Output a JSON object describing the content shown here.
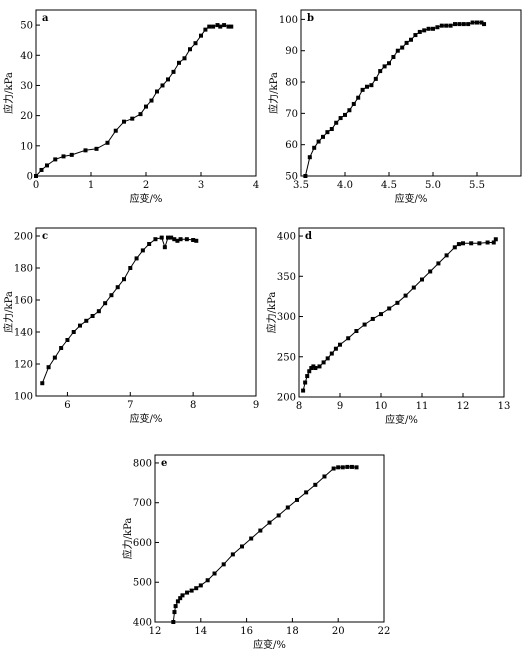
{
  "chart_data": [
    {
      "type": "scatter",
      "panel_label": "a",
      "xlabel": "应变/%",
      "ylabel": "应力/kPa",
      "xlim": [
        0,
        4
      ],
      "ylim": [
        0,
        55
      ],
      "xticks": [
        "0",
        "1",
        "2",
        "3",
        "4"
      ],
      "yticks": [
        "0",
        "10",
        "20",
        "30",
        "40",
        "50"
      ],
      "x": [
        0,
        0.1,
        0.2,
        0.35,
        0.5,
        0.65,
        0.9,
        1.1,
        1.3,
        1.45,
        1.6,
        1.75,
        1.9,
        2.0,
        2.1,
        2.2,
        2.3,
        2.4,
        2.5,
        2.6,
        2.7,
        2.8,
        2.9,
        3.0,
        3.08,
        3.15,
        3.22,
        3.3,
        3.35,
        3.42,
        3.5,
        3.55
      ],
      "y": [
        0,
        2,
        3.5,
        5.5,
        6.5,
        7,
        8.5,
        9,
        11,
        15,
        18,
        19,
        20.5,
        23,
        25,
        28,
        30,
        32,
        34.5,
        37.5,
        39,
        42,
        44,
        46.5,
        48.5,
        49.5,
        49.5,
        50,
        49.5,
        50,
        49.5,
        49.5
      ]
    },
    {
      "type": "scatter",
      "panel_label": "b",
      "xlabel": "应变/%",
      "ylabel": "应力/kPa",
      "xlim": [
        3.5,
        6.0
      ],
      "ylim": [
        50,
        103
      ],
      "xticks": [
        "3.5",
        "4.0",
        "4.5",
        "5.0",
        "5.5"
      ],
      "yticks": [
        "50",
        "60",
        "70",
        "80",
        "90",
        "100"
      ],
      "x": [
        3.55,
        3.6,
        3.65,
        3.7,
        3.75,
        3.8,
        3.85,
        3.9,
        3.95,
        4.0,
        4.05,
        4.1,
        4.15,
        4.2,
        4.25,
        4.3,
        4.35,
        4.4,
        4.45,
        4.5,
        4.55,
        4.6,
        4.65,
        4.7,
        4.75,
        4.8,
        4.85,
        4.9,
        4.95,
        5.0,
        5.05,
        5.1,
        5.15,
        5.2,
        5.25,
        5.3,
        5.35,
        5.4,
        5.45,
        5.5,
        5.55,
        5.58
      ],
      "y": [
        50,
        56,
        59,
        61,
        62.5,
        64,
        65,
        67,
        68.5,
        69.5,
        71,
        73,
        75,
        77.5,
        78.5,
        79,
        81,
        83.5,
        85,
        86,
        88,
        90,
        91,
        92.5,
        93.5,
        95,
        96,
        96.5,
        97,
        97,
        97.5,
        98,
        98,
        98,
        98.5,
        98.5,
        98.5,
        98.5,
        99,
        99,
        99,
        98.5
      ]
    },
    {
      "type": "scatter",
      "panel_label": "c",
      "xlabel": "应变/%",
      "ylabel": "应力/kPa",
      "xlim": [
        5.5,
        9
      ],
      "ylim": [
        100,
        205
      ],
      "xticks": [
        "6",
        "7",
        "8",
        "9"
      ],
      "yticks": [
        "100",
        "120",
        "140",
        "160",
        "180",
        "200"
      ],
      "x": [
        5.6,
        5.7,
        5.8,
        5.9,
        6.0,
        6.1,
        6.2,
        6.3,
        6.4,
        6.5,
        6.6,
        6.7,
        6.8,
        6.9,
        7.0,
        7.1,
        7.2,
        7.3,
        7.4,
        7.5,
        7.55,
        7.6,
        7.65,
        7.7,
        7.75,
        7.8,
        7.9,
        8.0,
        8.05
      ],
      "y": [
        108,
        118,
        124,
        130,
        135,
        140,
        144,
        147,
        150,
        153,
        158,
        163,
        168,
        173,
        180,
        186,
        191,
        195,
        198,
        199,
        193,
        199,
        199,
        198,
        197,
        198,
        198,
        197.5,
        197
      ]
    },
    {
      "type": "scatter",
      "panel_label": "d",
      "xlabel": "应变/%",
      "ylabel": "应力/kPa",
      "xlim": [
        8,
        13
      ],
      "ylim": [
        200,
        410
      ],
      "xticks": [
        "8",
        "9",
        "10",
        "11",
        "12",
        "13"
      ],
      "yticks": [
        "200",
        "250",
        "300",
        "350",
        "400"
      ],
      "x": [
        8.1,
        8.15,
        8.2,
        8.25,
        8.3,
        8.35,
        8.4,
        8.5,
        8.6,
        8.7,
        8.8,
        8.9,
        9.0,
        9.2,
        9.4,
        9.6,
        9.8,
        10.0,
        10.2,
        10.4,
        10.6,
        10.8,
        11.0,
        11.2,
        11.4,
        11.6,
        11.8,
        11.9,
        12.0,
        12.2,
        12.4,
        12.6,
        12.75,
        12.8
      ],
      "y": [
        208,
        218,
        226,
        232,
        236,
        238,
        236,
        238,
        243,
        248,
        254,
        260,
        265,
        273,
        282,
        290,
        297,
        303,
        310,
        317,
        326,
        336,
        346,
        356,
        366,
        376,
        386,
        390,
        391,
        391,
        391,
        392,
        392,
        396
      ]
    },
    {
      "type": "scatter",
      "panel_label": "e",
      "xlabel": "应变/%",
      "ylabel": "应力/kPa",
      "xlim": [
        12,
        22
      ],
      "ylim": [
        400,
        820
      ],
      "xticks": [
        "12",
        "14",
        "16",
        "18",
        "20",
        "22"
      ],
      "yticks": [
        "400",
        "500",
        "600",
        "700",
        "800"
      ],
      "x": [
        12.8,
        12.85,
        12.9,
        13.0,
        13.1,
        13.2,
        13.4,
        13.6,
        13.8,
        14.0,
        14.3,
        14.6,
        15.0,
        15.4,
        15.8,
        16.2,
        16.6,
        17.0,
        17.4,
        17.8,
        18.2,
        18.6,
        19.0,
        19.4,
        19.8,
        20.0,
        20.2,
        20.4,
        20.6,
        20.8
      ],
      "y": [
        400,
        425,
        440,
        452,
        460,
        467,
        474,
        479,
        485,
        492,
        505,
        522,
        545,
        570,
        590,
        610,
        630,
        650,
        668,
        688,
        707,
        726,
        745,
        766,
        786,
        789,
        789,
        790,
        790,
        789
      ]
    }
  ]
}
